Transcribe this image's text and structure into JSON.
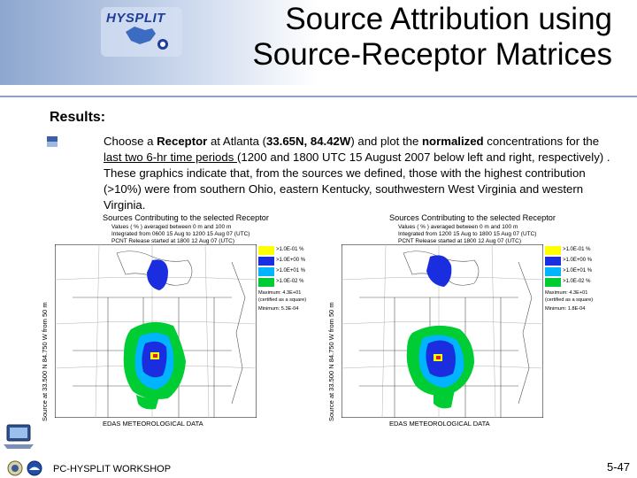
{
  "header": {
    "logo_text": "HYSPLIT",
    "title_line1": "Source Attribution using",
    "title_line2": "Source-Receptor Matrices"
  },
  "results_label": "Results:",
  "body": {
    "t1": "Choose a ",
    "t2": "Receptor",
    "t3": " at Atlanta (",
    "t4": "33.65N, 84.42W",
    "t5": ") and plot the ",
    "t6": "normalized",
    "t7": " concentrations for the ",
    "t8": "last two 6-hr time periods ",
    "t9": "(1200 and 1800 UTC 15 August 2007 below left and right, respectively) .  These graphics indicate that, from the sources we defined, those with the highest contribution (>10%) were from southern Ohio, eastern Kentucky, southwestern West Virginia and western Virginia."
  },
  "plots": [
    {
      "title": "Sources Contributing to the selected Receptor",
      "line1": "Values ( % ) averaged between      0 m and    100 m",
      "line2": "Integrated from 0600 15 Aug to 1200 15 Aug 07 (UTC)",
      "line3": "PCNT Release started at 1800 12 Aug 07 (UTC)",
      "ylabel": "Source at  33.500 N  84.750 W     from   50 m",
      "xlabel": "EDAS METEOROLOGICAL DATA",
      "legend": [
        ">1.0E-01  %",
        ">1.0E+00  %",
        ">1.0E+01  %",
        ">1.0E-02  %"
      ],
      "max": "Maximum: 4.3E+01",
      "max_note": "(certified as a square)",
      "min": "Minimum: 5.3E-04"
    },
    {
      "title": "Sources Contributing to the selected Receptor",
      "line1": "Values ( % ) averaged between      0 m and    100 m",
      "line2": "Integrated from 1200 15 Aug to 1800 15 Aug 07 (UTC)",
      "line3": "PCNT Release started at 1800 12 Aug 07 (UTC)",
      "ylabel": "Source at  33.500 N  84.750 W     from   50 m",
      "xlabel": "EDAS METEOROLOGICAL DATA",
      "legend": [
        ">1.0E-01  %",
        ">1.0E+00  %",
        ">1.0E+01  %",
        ">1.0E-02  %"
      ],
      "max": "Maximum: 4.3E+01",
      "max_note": "(certified as a square)",
      "min": "Minimum: 1.8E-04"
    }
  ],
  "legend_colors": [
    "#ffff00",
    "#1a2ee0",
    "#00b4ff",
    "#00cc33"
  ],
  "footer": {
    "left": "PC-HYSPLIT WORKSHOP",
    "page": "5-47"
  }
}
